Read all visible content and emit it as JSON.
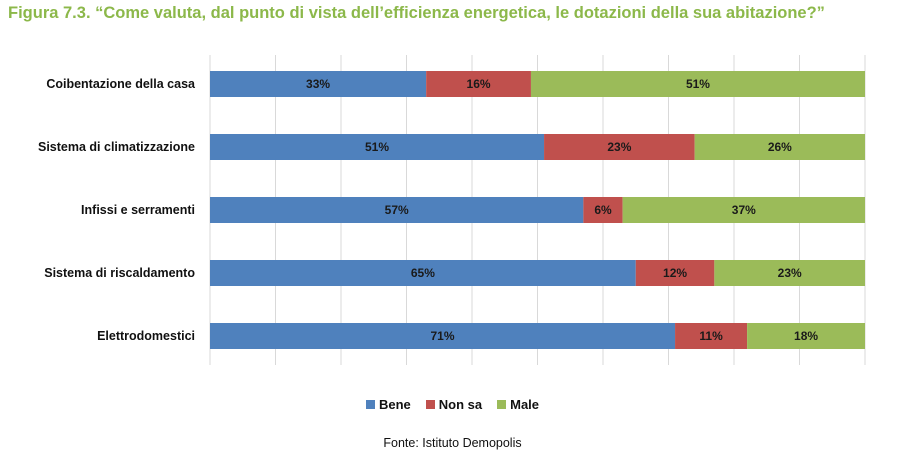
{
  "title": "Figura 7.3. “Come valuta, dal punto di vista dell’efficienza energetica, le dotazioni della sua abitazione?”",
  "source": "Fonte: Istituto Demopolis",
  "colors": {
    "title": "#8cb84a",
    "Bene": "#4f81bd",
    "Non sa": "#c0504d",
    "Male": "#9bbb59"
  },
  "chart_data": {
    "type": "bar",
    "orientation": "horizontal",
    "stacked": true,
    "xlim": [
      0,
      100
    ],
    "categories": [
      "Coibentazione della casa",
      "Sistema di climatizzazione",
      "Infissi e serramenti",
      "Sistema di riscaldamento",
      "Elettrodomestici"
    ],
    "series": [
      {
        "name": "Bene",
        "values": [
          33,
          51,
          57,
          65,
          71
        ],
        "labels": [
          "33%",
          "51%",
          "57%",
          "65%",
          "71%"
        ]
      },
      {
        "name": "Non sa",
        "values": [
          16,
          23,
          6,
          12,
          11
        ],
        "labels": [
          "16%",
          "23%",
          "6%",
          "12%",
          "11%"
        ]
      },
      {
        "name": "Male",
        "values": [
          51,
          26,
          37,
          23,
          18
        ],
        "labels": [
          "51%",
          "26%",
          "37%",
          "23%",
          "18%"
        ]
      }
    ],
    "legend": "bottom",
    "grid": true
  }
}
